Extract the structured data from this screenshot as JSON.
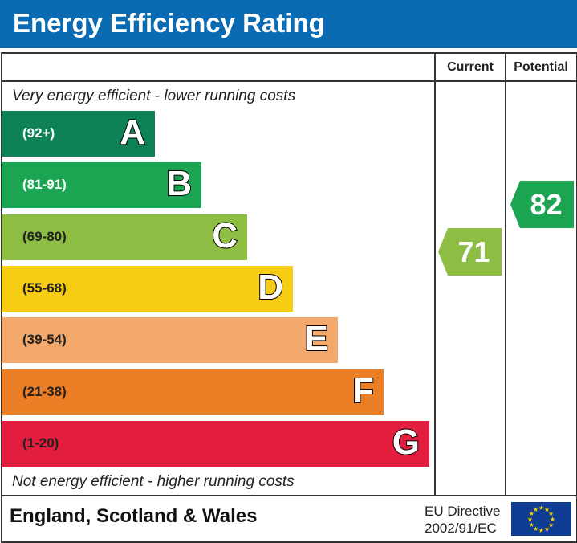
{
  "title": "Energy Efficiency Rating",
  "chart_data": {
    "type": "table",
    "columns": [
      "Current",
      "Potential"
    ],
    "top_note": "Very energy efficient - lower running costs",
    "bottom_note": "Not energy efficient - higher running costs",
    "bands": [
      {
        "letter": "A",
        "range": "(92+)",
        "color": "#0f8156",
        "text_color": "#ffffff"
      },
      {
        "letter": "B",
        "range": "(81-91)",
        "color": "#1ba553",
        "text_color": "#ffffff"
      },
      {
        "letter": "C",
        "range": "(69-80)",
        "color": "#8dbd43",
        "text_color": "#222222"
      },
      {
        "letter": "D",
        "range": "(55-68)",
        "color": "#f6cc15",
        "text_color": "#222222"
      },
      {
        "letter": "E",
        "range": "(39-54)",
        "color": "#f2a96b",
        "text_color": "#222222"
      },
      {
        "letter": "F",
        "range": "(21-38)",
        "color": "#ec7f26",
        "text_color": "#222222"
      },
      {
        "letter": "G",
        "range": "(1-20)",
        "color": "#e21d3e",
        "text_color": "#222222"
      }
    ],
    "current": {
      "value": 71,
      "band": "C",
      "color": "#8dbd43"
    },
    "potential": {
      "value": 82,
      "band": "B",
      "color": "#1ba553"
    }
  },
  "footer": {
    "region": "England, Scotland & Wales",
    "directive_line1": "EU Directive",
    "directive_line2": "2002/91/EC"
  }
}
